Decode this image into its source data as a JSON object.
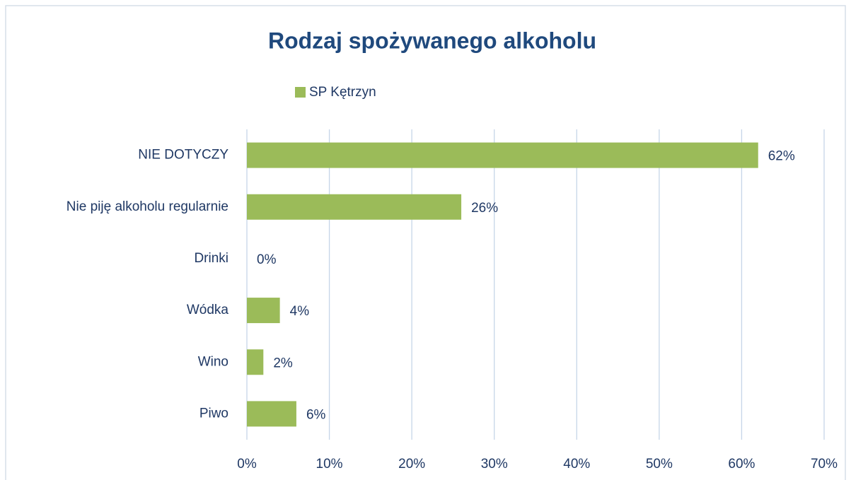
{
  "chart_data": {
    "type": "bar",
    "orientation": "horizontal",
    "title": "Rodzaj spożywanego alkoholu",
    "categories": [
      "NIE DOTYCZY",
      "Nie piję alkoholu regularnie",
      "Drinki",
      "Wódka",
      "Wino",
      "Piwo"
    ],
    "series": [
      {
        "name": "SP Kętrzyn",
        "color": "#9bbb59",
        "values": [
          62,
          26,
          0,
          4,
          2,
          6
        ],
        "value_labels": [
          "62%",
          "26%",
          "0%",
          "4%",
          "2%",
          "6%"
        ]
      }
    ],
    "xlim": [
      0,
      70
    ],
    "xticks": [
      {
        "value": 0,
        "label": "0%"
      },
      {
        "value": 10,
        "label": "10%"
      },
      {
        "value": 20,
        "label": "20%"
      },
      {
        "value": 30,
        "label": "30%"
      },
      {
        "value": 40,
        "label": "40%"
      },
      {
        "value": 50,
        "label": "50%"
      },
      {
        "value": 60,
        "label": "60%"
      },
      {
        "value": 70,
        "label": "70%"
      }
    ],
    "grid": true,
    "legend": "top"
  }
}
